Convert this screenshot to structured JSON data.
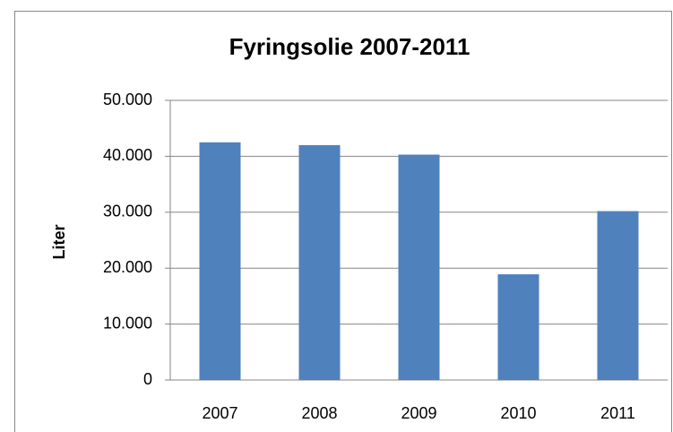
{
  "chart_data": {
    "type": "bar",
    "title": "Fyringsolie 2007-2011",
    "y_label": "Liter",
    "categories": [
      "2007",
      "2008",
      "2009",
      "2010",
      "2011"
    ],
    "values": [
      42500,
      42000,
      40300,
      18900,
      30200
    ],
    "color": "#4f81bd",
    "ylim": [
      0,
      50000
    ],
    "yticks": [
      0,
      {
        "value": 10000,
        "label": "10.000"
      },
      {
        "value": 20000,
        "label": "20.000"
      },
      {
        "value": 30000,
        "label": "30.000"
      },
      {
        "value": 40000,
        "label": "40.000"
      },
      {
        "value": 50000,
        "label": "50.000"
      }
    ],
    "grid": true
  }
}
